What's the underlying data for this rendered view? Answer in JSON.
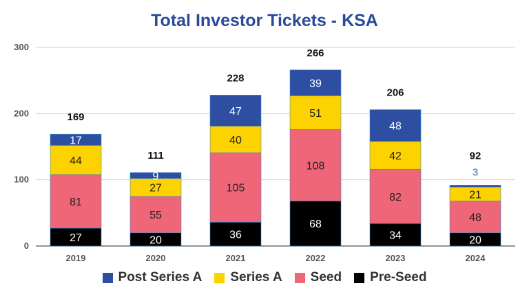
{
  "chart_data": {
    "type": "bar",
    "stacked": true,
    "title": "Total Investor Tickets - KSA",
    "categories": [
      "2019",
      "2020",
      "2021",
      "2022",
      "2023",
      "2024"
    ],
    "series": [
      {
        "name": "Pre-Seed",
        "color": "#000000",
        "values": [
          27,
          20,
          36,
          68,
          34,
          20
        ]
      },
      {
        "name": "Seed",
        "color": "#ee6677",
        "values": [
          81,
          55,
          105,
          108,
          82,
          48
        ]
      },
      {
        "name": "Series A",
        "color": "#fcd200",
        "values": [
          44,
          27,
          40,
          51,
          42,
          21
        ]
      },
      {
        "name": "Post Series A",
        "color": "#2e4fa1",
        "values": [
          17,
          9,
          47,
          39,
          48,
          3
        ]
      }
    ],
    "totals": [
      169,
      111,
      228,
      266,
      206,
      92
    ],
    "ylim": [
      0,
      300
    ],
    "yticks": [
      0,
      100,
      200,
      300
    ],
    "grid": true,
    "legend_position": "bottom",
    "xlabel": "",
    "ylabel": ""
  }
}
